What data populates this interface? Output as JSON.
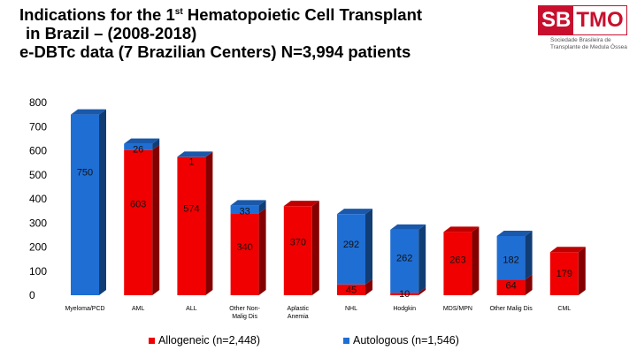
{
  "title": {
    "line1_prefix": "Indications for the 1",
    "line1_sup": "st",
    "line1_suffix": " Hematopoietic Cell Transplant",
    "line2": "in Brazil – (2008-2018)",
    "line3": "e-DBTc data (7 Brazilian Centers) N=3,994 patients"
  },
  "logo": {
    "part1": "SB",
    "part2": "TMO",
    "sub_line1": "Sociedade Brasileira de",
    "sub_line2": "Transplante de Medula Óssea"
  },
  "colors": {
    "allogeneic": "#f00000",
    "autologous": "#1f6ed4"
  },
  "chart_data": {
    "type": "bar",
    "stacked": true,
    "style": "3d",
    "categories": [
      "Myeloma/PCD",
      "AML",
      "ALL",
      "Other Non-Malig Dis",
      "Aplastic Anemia",
      "NHL",
      "Hodgkin",
      "MDS/MPN",
      "Other Malig Dis",
      "CML"
    ],
    "categories_display": [
      [
        "Myeloma/PCD"
      ],
      [
        "AML"
      ],
      [
        "ALL"
      ],
      [
        "Other Non-",
        "Malig Dis"
      ],
      [
        "Aplastic",
        "Anemia"
      ],
      [
        "NHL"
      ],
      [
        "Hodgkin"
      ],
      [
        "MDS/MPN"
      ],
      [
        "Other Malig Dis"
      ],
      [
        "CML"
      ]
    ],
    "series": [
      {
        "name": "Allogeneic (n=2,448)",
        "values": [
          0,
          603,
          574,
          340,
          370,
          45,
          10,
          263,
          64,
          179
        ]
      },
      {
        "name": "Autologous (n=1,546)",
        "values": [
          750,
          26,
          1,
          33,
          0,
          292,
          262,
          0,
          182,
          0
        ]
      }
    ],
    "data_labels": {
      "allogeneic": [
        "",
        "603",
        "574",
        "340",
        "370",
        "45",
        "10",
        "263",
        "64",
        "179"
      ],
      "autologous": [
        "750",
        "26",
        "1",
        "33",
        "",
        "292",
        "262",
        "",
        "182",
        ""
      ]
    },
    "ylim": [
      0,
      800
    ],
    "yticks": [
      "0",
      "100",
      "200",
      "300",
      "400",
      "500",
      "600",
      "700",
      "800"
    ],
    "grid": false,
    "legend": "bottom"
  }
}
